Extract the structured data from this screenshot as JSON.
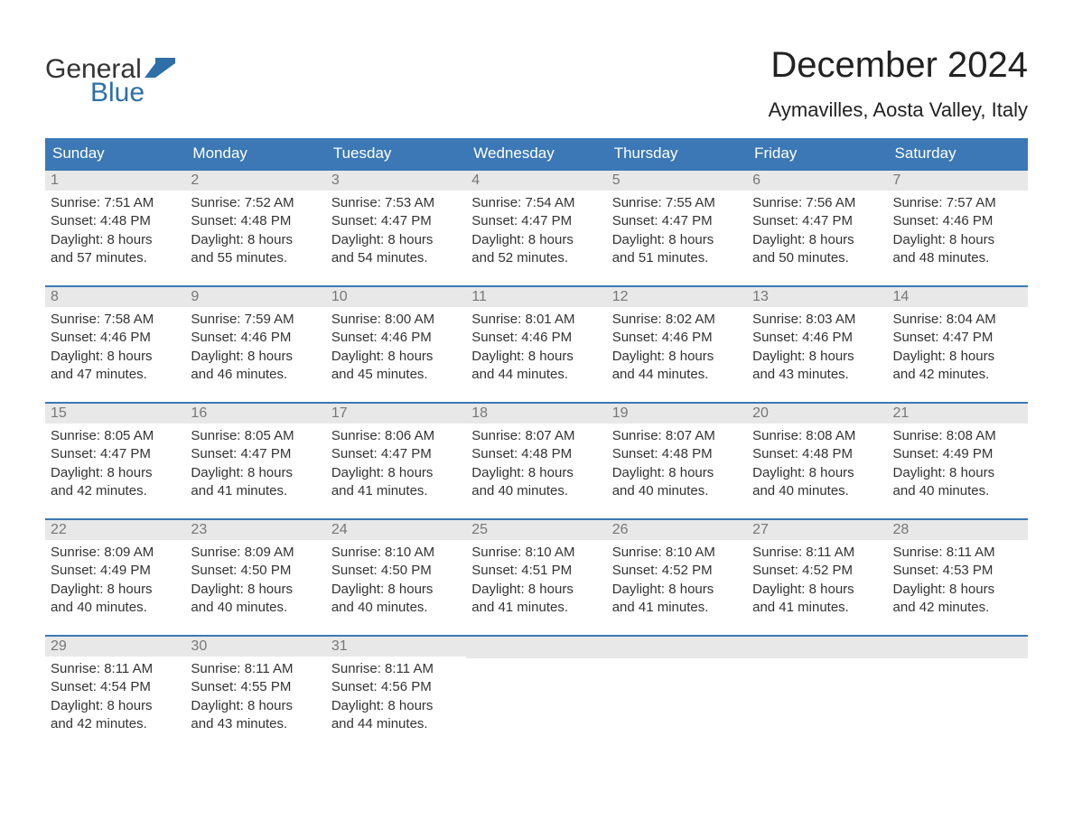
{
  "logo": {
    "word1": "General",
    "word2": "Blue"
  },
  "title": "December 2024",
  "location": "Aymavilles, Aosta Valley, Italy",
  "colors": {
    "header_bg": "#3b78b5",
    "header_text": "#ffffff",
    "daynum_bg": "#e8e8e8",
    "daynum_text": "#777777",
    "body_text": "#333333",
    "logo_blue": "#2f6fa7",
    "week_border": "#3b78b5"
  },
  "dow": [
    "Sunday",
    "Monday",
    "Tuesday",
    "Wednesday",
    "Thursday",
    "Friday",
    "Saturday"
  ],
  "weeks": [
    [
      {
        "n": "1",
        "sunrise": "Sunrise: 7:51 AM",
        "sunset": "Sunset: 4:48 PM",
        "d1": "Daylight: 8 hours",
        "d2": "and 57 minutes."
      },
      {
        "n": "2",
        "sunrise": "Sunrise: 7:52 AM",
        "sunset": "Sunset: 4:48 PM",
        "d1": "Daylight: 8 hours",
        "d2": "and 55 minutes."
      },
      {
        "n": "3",
        "sunrise": "Sunrise: 7:53 AM",
        "sunset": "Sunset: 4:47 PM",
        "d1": "Daylight: 8 hours",
        "d2": "and 54 minutes."
      },
      {
        "n": "4",
        "sunrise": "Sunrise: 7:54 AM",
        "sunset": "Sunset: 4:47 PM",
        "d1": "Daylight: 8 hours",
        "d2": "and 52 minutes."
      },
      {
        "n": "5",
        "sunrise": "Sunrise: 7:55 AM",
        "sunset": "Sunset: 4:47 PM",
        "d1": "Daylight: 8 hours",
        "d2": "and 51 minutes."
      },
      {
        "n": "6",
        "sunrise": "Sunrise: 7:56 AM",
        "sunset": "Sunset: 4:47 PM",
        "d1": "Daylight: 8 hours",
        "d2": "and 50 minutes."
      },
      {
        "n": "7",
        "sunrise": "Sunrise: 7:57 AM",
        "sunset": "Sunset: 4:46 PM",
        "d1": "Daylight: 8 hours",
        "d2": "and 48 minutes."
      }
    ],
    [
      {
        "n": "8",
        "sunrise": "Sunrise: 7:58 AM",
        "sunset": "Sunset: 4:46 PM",
        "d1": "Daylight: 8 hours",
        "d2": "and 47 minutes."
      },
      {
        "n": "9",
        "sunrise": "Sunrise: 7:59 AM",
        "sunset": "Sunset: 4:46 PM",
        "d1": "Daylight: 8 hours",
        "d2": "and 46 minutes."
      },
      {
        "n": "10",
        "sunrise": "Sunrise: 8:00 AM",
        "sunset": "Sunset: 4:46 PM",
        "d1": "Daylight: 8 hours",
        "d2": "and 45 minutes."
      },
      {
        "n": "11",
        "sunrise": "Sunrise: 8:01 AM",
        "sunset": "Sunset: 4:46 PM",
        "d1": "Daylight: 8 hours",
        "d2": "and 44 minutes."
      },
      {
        "n": "12",
        "sunrise": "Sunrise: 8:02 AM",
        "sunset": "Sunset: 4:46 PM",
        "d1": "Daylight: 8 hours",
        "d2": "and 44 minutes."
      },
      {
        "n": "13",
        "sunrise": "Sunrise: 8:03 AM",
        "sunset": "Sunset: 4:46 PM",
        "d1": "Daylight: 8 hours",
        "d2": "and 43 minutes."
      },
      {
        "n": "14",
        "sunrise": "Sunrise: 8:04 AM",
        "sunset": "Sunset: 4:47 PM",
        "d1": "Daylight: 8 hours",
        "d2": "and 42 minutes."
      }
    ],
    [
      {
        "n": "15",
        "sunrise": "Sunrise: 8:05 AM",
        "sunset": "Sunset: 4:47 PM",
        "d1": "Daylight: 8 hours",
        "d2": "and 42 minutes."
      },
      {
        "n": "16",
        "sunrise": "Sunrise: 8:05 AM",
        "sunset": "Sunset: 4:47 PM",
        "d1": "Daylight: 8 hours",
        "d2": "and 41 minutes."
      },
      {
        "n": "17",
        "sunrise": "Sunrise: 8:06 AM",
        "sunset": "Sunset: 4:47 PM",
        "d1": "Daylight: 8 hours",
        "d2": "and 41 minutes."
      },
      {
        "n": "18",
        "sunrise": "Sunrise: 8:07 AM",
        "sunset": "Sunset: 4:48 PM",
        "d1": "Daylight: 8 hours",
        "d2": "and 40 minutes."
      },
      {
        "n": "19",
        "sunrise": "Sunrise: 8:07 AM",
        "sunset": "Sunset: 4:48 PM",
        "d1": "Daylight: 8 hours",
        "d2": "and 40 minutes."
      },
      {
        "n": "20",
        "sunrise": "Sunrise: 8:08 AM",
        "sunset": "Sunset: 4:48 PM",
        "d1": "Daylight: 8 hours",
        "d2": "and 40 minutes."
      },
      {
        "n": "21",
        "sunrise": "Sunrise: 8:08 AM",
        "sunset": "Sunset: 4:49 PM",
        "d1": "Daylight: 8 hours",
        "d2": "and 40 minutes."
      }
    ],
    [
      {
        "n": "22",
        "sunrise": "Sunrise: 8:09 AM",
        "sunset": "Sunset: 4:49 PM",
        "d1": "Daylight: 8 hours",
        "d2": "and 40 minutes."
      },
      {
        "n": "23",
        "sunrise": "Sunrise: 8:09 AM",
        "sunset": "Sunset: 4:50 PM",
        "d1": "Daylight: 8 hours",
        "d2": "and 40 minutes."
      },
      {
        "n": "24",
        "sunrise": "Sunrise: 8:10 AM",
        "sunset": "Sunset: 4:50 PM",
        "d1": "Daylight: 8 hours",
        "d2": "and 40 minutes."
      },
      {
        "n": "25",
        "sunrise": "Sunrise: 8:10 AM",
        "sunset": "Sunset: 4:51 PM",
        "d1": "Daylight: 8 hours",
        "d2": "and 41 minutes."
      },
      {
        "n": "26",
        "sunrise": "Sunrise: 8:10 AM",
        "sunset": "Sunset: 4:52 PM",
        "d1": "Daylight: 8 hours",
        "d2": "and 41 minutes."
      },
      {
        "n": "27",
        "sunrise": "Sunrise: 8:11 AM",
        "sunset": "Sunset: 4:52 PM",
        "d1": "Daylight: 8 hours",
        "d2": "and 41 minutes."
      },
      {
        "n": "28",
        "sunrise": "Sunrise: 8:11 AM",
        "sunset": "Sunset: 4:53 PM",
        "d1": "Daylight: 8 hours",
        "d2": "and 42 minutes."
      }
    ],
    [
      {
        "n": "29",
        "sunrise": "Sunrise: 8:11 AM",
        "sunset": "Sunset: 4:54 PM",
        "d1": "Daylight: 8 hours",
        "d2": "and 42 minutes."
      },
      {
        "n": "30",
        "sunrise": "Sunrise: 8:11 AM",
        "sunset": "Sunset: 4:55 PM",
        "d1": "Daylight: 8 hours",
        "d2": "and 43 minutes."
      },
      {
        "n": "31",
        "sunrise": "Sunrise: 8:11 AM",
        "sunset": "Sunset: 4:56 PM",
        "d1": "Daylight: 8 hours",
        "d2": "and 44 minutes."
      },
      null,
      null,
      null,
      null
    ]
  ]
}
